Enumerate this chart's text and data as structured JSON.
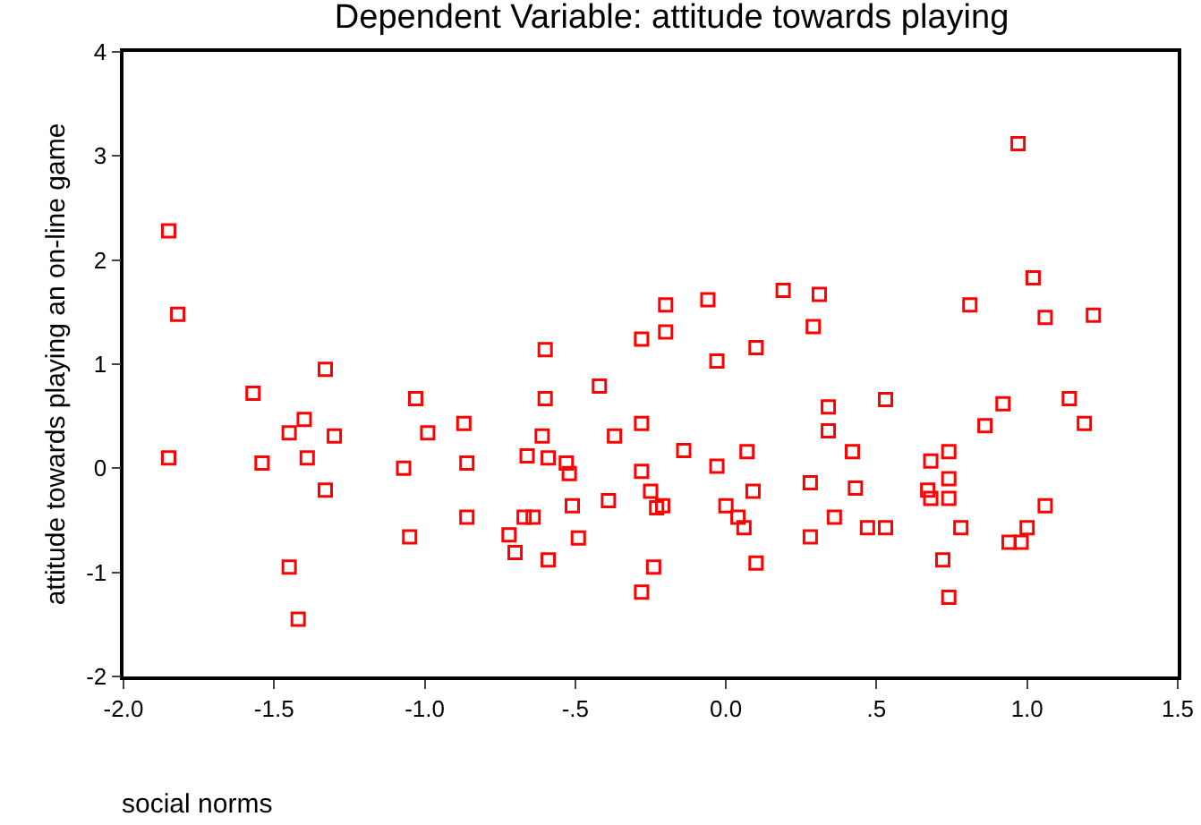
{
  "chart_data": {
    "type": "scatter",
    "title": "Dependent Variable: attitude towards playing",
    "xlabel": "social norms",
    "ylabel": "attitude towards playing an on-line game",
    "x": [
      -1.85,
      -1.82,
      -1.85,
      -1.57,
      -1.54,
      -1.45,
      -1.4,
      -1.33,
      -1.3,
      -1.39,
      -1.33,
      -1.45,
      -1.42,
      -1.03,
      -0.99,
      -1.07,
      -1.05,
      -0.87,
      -0.86,
      -0.86,
      -0.72,
      -0.7,
      -0.66,
      -0.64,
      -0.67,
      -0.61,
      -0.6,
      -0.59,
      -0.59,
      -0.53,
      -0.52,
      -0.51,
      -0.49,
      -0.42,
      -0.39,
      -0.37,
      -0.28,
      -0.28,
      -0.28,
      -0.6,
      -0.28,
      0.97,
      1.02,
      1.06,
      1.22,
      0.81,
      -0.2,
      -0.06,
      0.19,
      0.31,
      -0.2,
      -0.03,
      0.1,
      0.29,
      0.34,
      0.53,
      0.92,
      1.14,
      0.86,
      1.19,
      0.34,
      -0.14,
      0.07,
      -0.03,
      0.42,
      0.68,
      0.74,
      0.74,
      0.67,
      0.68,
      0.74,
      -0.25,
      -0.23,
      -0.21,
      0.0,
      0.04,
      0.06,
      0.09,
      0.28,
      0.43,
      0.36,
      0.28,
      0.47,
      0.53,
      0.78,
      0.72,
      0.74,
      0.94,
      0.98,
      1.0,
      1.06,
      0.1,
      -0.24
    ],
    "values": [
      2.28,
      1.48,
      0.1,
      0.72,
      0.05,
      0.34,
      0.47,
      0.95,
      0.31,
      0.1,
      -0.21,
      -0.95,
      -1.45,
      0.67,
      0.34,
      0.0,
      -0.66,
      0.43,
      0.05,
      -0.47,
      -0.64,
      -0.81,
      0.12,
      -0.47,
      -0.47,
      0.31,
      0.67,
      0.1,
      -0.88,
      0.05,
      -0.05,
      -0.36,
      -0.67,
      0.79,
      -0.31,
      0.31,
      0.43,
      -0.03,
      -1.19,
      1.14,
      1.24,
      3.12,
      1.83,
      1.45,
      1.47,
      1.57,
      1.57,
      1.62,
      1.71,
      1.67,
      1.31,
      1.03,
      1.16,
      1.36,
      0.59,
      0.66,
      0.62,
      0.67,
      0.41,
      0.43,
      0.36,
      0.17,
      0.16,
      0.02,
      0.16,
      0.07,
      0.16,
      -0.1,
      -0.21,
      -0.29,
      -0.29,
      -0.22,
      -0.38,
      -0.36,
      -0.36,
      -0.47,
      -0.57,
      -0.22,
      -0.14,
      -0.19,
      -0.47,
      -0.66,
      -0.57,
      -0.57,
      -0.57,
      -0.88,
      -1.24,
      -0.71,
      -0.71,
      -0.57,
      -0.36,
      -0.91,
      -0.95
    ],
    "color": "#ff0000",
    "marker": "square",
    "xlim": [
      -2.0,
      1.5
    ],
    "xticks": [
      {
        "value": -2.0,
        "label": "-2.0"
      },
      {
        "value": -1.5,
        "label": "-1.5"
      },
      {
        "value": -1.0,
        "label": "-1.0"
      },
      {
        "value": -0.5,
        "label": "-.5"
      },
      {
        "value": 0.0,
        "label": "0.0"
      },
      {
        "value": 0.5,
        "label": ".5"
      },
      {
        "value": 1.0,
        "label": "1.0"
      },
      {
        "value": 1.5,
        "label": "1.5"
      }
    ],
    "ylim": [
      -2,
      4
    ],
    "yticks": [
      -2,
      -1,
      0,
      1,
      2,
      3,
      4
    ],
    "grid": false
  }
}
